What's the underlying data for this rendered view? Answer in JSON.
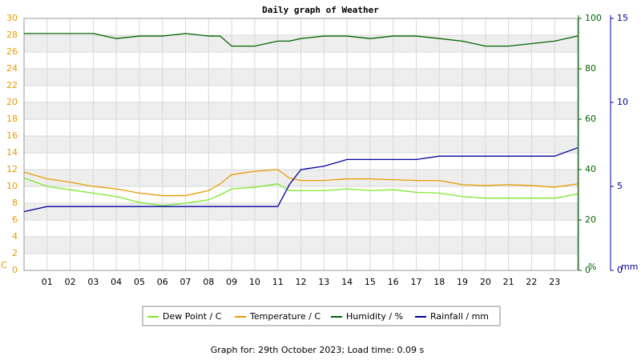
{
  "chart_data": {
    "type": "line",
    "title": "Daily graph of Weather",
    "footer": "Graph for: 29th October 2023; Load time: 0.09 s",
    "x": [
      0,
      1,
      2,
      3,
      4,
      5,
      6,
      7,
      8,
      8.5,
      9,
      10,
      11,
      11.5,
      12,
      13,
      14,
      15,
      16,
      17,
      18,
      19,
      20,
      21,
      22,
      23,
      24
    ],
    "xlim": [
      0,
      24
    ],
    "xticks": [
      {
        "value": 1,
        "label": "01"
      },
      {
        "value": 2,
        "label": "02"
      },
      {
        "value": 3,
        "label": "03"
      },
      {
        "value": 4,
        "label": "04"
      },
      {
        "value": 5,
        "label": "05"
      },
      {
        "value": 6,
        "label": "06"
      },
      {
        "value": 7,
        "label": "07"
      },
      {
        "value": 8,
        "label": "08"
      },
      {
        "value": 9,
        "label": "09"
      },
      10,
      11,
      12,
      13,
      14,
      15,
      16,
      17,
      18,
      19,
      20,
      21,
      22,
      23
    ],
    "ylim": [
      0,
      30
    ],
    "yticks": [
      0,
      2,
      4,
      6,
      8,
      10,
      12,
      14,
      16,
      18,
      20,
      22,
      24,
      26,
      28,
      30
    ],
    "y_label": "C",
    "y_color": "#e89b00",
    "y2lim": [
      0,
      100
    ],
    "y2ticks": [
      0,
      20,
      40,
      60,
      80,
      100
    ],
    "y2_label": "%",
    "y2_color": "#006400",
    "y3lim": [
      0,
      15
    ],
    "y3ticks": [
      0,
      5,
      10,
      15
    ],
    "y3_label": "mm",
    "y3_color": "#0000a0",
    "grid": true,
    "series": [
      {
        "name": "Dew Point / C",
        "color": "#7ee82a",
        "axis": "y",
        "values": [
          11.0,
          10.0,
          9.6,
          9.2,
          8.8,
          8.1,
          7.7,
          8.0,
          8.4,
          9.0,
          9.7,
          9.9,
          10.3,
          9.5,
          9.5,
          9.5,
          9.7,
          9.5,
          9.6,
          9.3,
          9.2,
          8.8,
          8.6,
          8.6,
          8.6,
          8.6,
          9.1
        ]
      },
      {
        "name": "Temperature / C",
        "color": "#e89b00",
        "axis": "y",
        "values": [
          11.7,
          10.9,
          10.5,
          10.0,
          9.7,
          9.2,
          8.9,
          8.9,
          9.5,
          10.3,
          11.4,
          11.8,
          12.0,
          11.0,
          10.7,
          10.7,
          10.9,
          10.9,
          10.8,
          10.7,
          10.7,
          10.2,
          10.1,
          10.2,
          10.1,
          9.9,
          10.3
        ]
      },
      {
        "name": "Humidity / %",
        "color": "#006400",
        "axis": "y2",
        "values": [
          94,
          94,
          94,
          94,
          92,
          93,
          93,
          94,
          93,
          93,
          89,
          89,
          91,
          91,
          92,
          93,
          93,
          92,
          93,
          93,
          92,
          91,
          89,
          89,
          90,
          91,
          93
        ]
      },
      {
        "name": "Rainfall / mm",
        "color": "#0000a0",
        "axis": "y3",
        "values": [
          3.5,
          3.8,
          3.8,
          3.8,
          3.8,
          3.8,
          3.8,
          3.8,
          3.8,
          3.8,
          3.8,
          3.8,
          3.8,
          5.1,
          6.0,
          6.2,
          6.6,
          6.6,
          6.6,
          6.6,
          6.8,
          6.8,
          6.8,
          6.8,
          6.8,
          6.8,
          7.3
        ]
      }
    ]
  }
}
